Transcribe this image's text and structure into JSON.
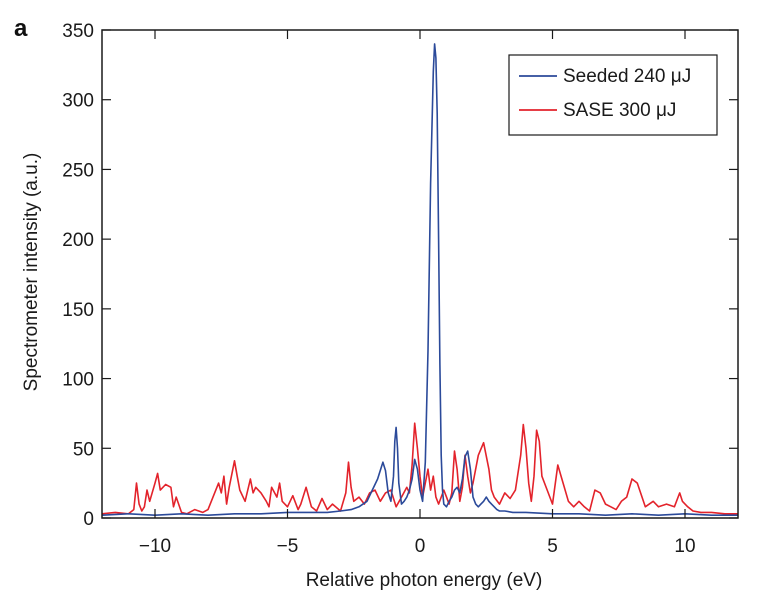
{
  "panel_label": "a",
  "colors": {
    "seeded": "#2b4a9a",
    "sase": "#e3232b",
    "axis": "#1a1a1a"
  },
  "chart_data": {
    "type": "line",
    "title": "",
    "xlabel": "Relative photon energy (eV)",
    "ylabel": "Spectrometer intensity (a.u.)",
    "xlim": [
      -12,
      12
    ],
    "ylim": [
      0,
      350
    ],
    "xticks": [
      -10,
      -5,
      0,
      5,
      10
    ],
    "xtick_labels": [
      "−10",
      "−5",
      "0",
      "5",
      "10"
    ],
    "yticks": [
      0,
      50,
      100,
      150,
      200,
      250,
      300,
      350
    ],
    "ytick_labels": [
      "0",
      "50",
      "100",
      "150",
      "200",
      "250",
      "300",
      "350"
    ],
    "grid": false,
    "legend_position": "top-right",
    "series": [
      {
        "name": "Seeded 240 μJ",
        "color": "#2b4a9a",
        "x": [
          -12,
          -11,
          -10,
          -9,
          -8,
          -7,
          -6,
          -5,
          -4,
          -3.5,
          -3,
          -2.6,
          -2.3,
          -2,
          -1.8,
          -1.6,
          -1.4,
          -1.3,
          -1.2,
          -1.1,
          -1.0,
          -0.95,
          -0.9,
          -0.85,
          -0.8,
          -0.7,
          -0.6,
          -0.5,
          -0.4,
          -0.3,
          -0.2,
          -0.1,
          0,
          0.1,
          0.2,
          0.3,
          0.4,
          0.5,
          0.55,
          0.6,
          0.65,
          0.7,
          0.75,
          0.8,
          0.85,
          0.9,
          1.0,
          1.1,
          1.2,
          1.3,
          1.4,
          1.5,
          1.6,
          1.7,
          1.8,
          1.9,
          2.0,
          2.1,
          2.2,
          2.3,
          2.4,
          2.5,
          2.6,
          2.7,
          2.8,
          2.9,
          3.0,
          3.2,
          3.5,
          4,
          5,
          6,
          7,
          8,
          9,
          10,
          11,
          12
        ],
        "y": [
          2,
          3,
          2,
          3,
          2,
          3,
          3,
          4,
          4,
          4,
          5,
          6,
          8,
          12,
          20,
          28,
          40,
          34,
          18,
          12,
          30,
          55,
          65,
          50,
          25,
          10,
          12,
          15,
          20,
          28,
          42,
          35,
          20,
          12,
          40,
          120,
          240,
          320,
          340,
          330,
          290,
          200,
          110,
          45,
          20,
          10,
          8,
          12,
          15,
          20,
          22,
          18,
          28,
          44,
          48,
          35,
          15,
          10,
          8,
          10,
          12,
          15,
          12,
          10,
          8,
          6,
          5,
          5,
          4,
          4,
          3,
          3,
          2,
          3,
          2,
          3,
          2,
          2
        ]
      },
      {
        "name": "SASE 300 μJ",
        "color": "#e3232b",
        "x": [
          -12,
          -11.5,
          -11,
          -10.8,
          -10.7,
          -10.6,
          -10.5,
          -10.4,
          -10.3,
          -10.2,
          -10.0,
          -9.9,
          -9.8,
          -9.6,
          -9.4,
          -9.3,
          -9.2,
          -9.0,
          -8.8,
          -8.5,
          -8.2,
          -8.0,
          -7.6,
          -7.5,
          -7.4,
          -7.3,
          -7.2,
          -7.0,
          -6.9,
          -6.8,
          -6.6,
          -6.4,
          -6.3,
          -6.2,
          -6.0,
          -5.8,
          -5.7,
          -5.6,
          -5.4,
          -5.3,
          -5.2,
          -5.0,
          -4.8,
          -4.6,
          -4.5,
          -4.3,
          -4.1,
          -3.9,
          -3.7,
          -3.5,
          -3.3,
          -3.0,
          -2.8,
          -2.7,
          -2.6,
          -2.5,
          -2.3,
          -2.1,
          -1.9,
          -1.7,
          -1.5,
          -1.3,
          -1.1,
          -0.9,
          -0.7,
          -0.5,
          -0.4,
          -0.3,
          -0.2,
          -0.1,
          0,
          0.1,
          0.2,
          0.3,
          0.4,
          0.5,
          0.6,
          0.7,
          0.8,
          0.9,
          1.0,
          1.1,
          1.2,
          1.3,
          1.4,
          1.5,
          1.6,
          1.7,
          1.8,
          1.9,
          2.0,
          2.2,
          2.4,
          2.6,
          2.7,
          2.8,
          3.0,
          3.2,
          3.4,
          3.6,
          3.8,
          3.9,
          4.0,
          4.1,
          4.2,
          4.3,
          4.4,
          4.5,
          4.6,
          4.8,
          5.0,
          5.2,
          5.4,
          5.6,
          5.8,
          6.0,
          6.2,
          6.4,
          6.6,
          6.8,
          7.0,
          7.2,
          7.4,
          7.6,
          7.8,
          8.0,
          8.2,
          8.5,
          8.8,
          9.0,
          9.3,
          9.6,
          9.8,
          9.9,
          10.1,
          10.3,
          10.6,
          11,
          11.5,
          12
        ],
        "y": [
          3,
          4,
          3,
          6,
          25,
          10,
          5,
          8,
          20,
          12,
          25,
          32,
          20,
          24,
          22,
          8,
          15,
          4,
          3,
          6,
          4,
          6,
          25,
          18,
          30,
          10,
          22,
          41,
          30,
          20,
          12,
          28,
          18,
          22,
          18,
          12,
          8,
          22,
          15,
          25,
          12,
          8,
          16,
          6,
          10,
          22,
          8,
          5,
          14,
          6,
          10,
          5,
          18,
          40,
          22,
          12,
          15,
          10,
          18,
          20,
          12,
          18,
          20,
          8,
          15,
          22,
          18,
          38,
          68,
          50,
          30,
          15,
          25,
          35,
          20,
          30,
          15,
          10,
          15,
          20,
          15,
          10,
          18,
          48,
          35,
          12,
          22,
          45,
          30,
          18,
          25,
          45,
          54,
          35,
          20,
          15,
          10,
          18,
          14,
          20,
          45,
          67,
          50,
          25,
          12,
          30,
          63,
          55,
          30,
          20,
          10,
          38,
          25,
          12,
          8,
          12,
          8,
          5,
          20,
          18,
          10,
          8,
          6,
          12,
          15,
          28,
          25,
          8,
          12,
          8,
          10,
          8,
          18,
          12,
          8,
          5,
          4,
          4,
          3,
          3
        ]
      }
    ]
  }
}
